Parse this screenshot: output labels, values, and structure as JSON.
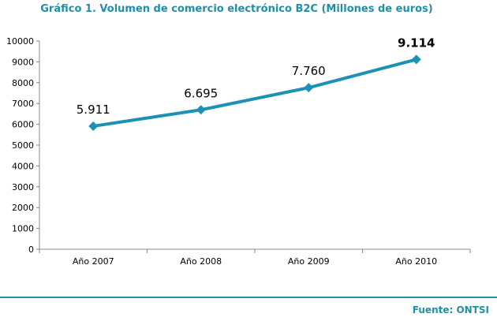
{
  "chart_data": {
    "type": "line",
    "title": "Gráfico 1. Volumen de comercio electrónico B2C (Millones de euros)",
    "xlabel": "",
    "ylabel": "",
    "categories": [
      "Año 2007",
      "Año 2008",
      "Año 2009",
      "Año 2010"
    ],
    "series": [
      {
        "values": [
          5911,
          6695,
          7760,
          9114
        ],
        "data_labels": [
          "5.911",
          "6.695",
          "7.760",
          "9.114"
        ],
        "color": "#1b92b5"
      }
    ],
    "ylim": [
      0,
      10000
    ],
    "yticks": [
      0,
      1000,
      2000,
      3000,
      4000,
      5000,
      6000,
      7000,
      8000,
      9000,
      10000
    ],
    "grid": false,
    "legend": "none",
    "marker": "diamond"
  },
  "source": "Fuente: ONTSI",
  "colors": {
    "accent": "#1f8fa8",
    "line": "#1b92b5",
    "axis": "#888888"
  }
}
